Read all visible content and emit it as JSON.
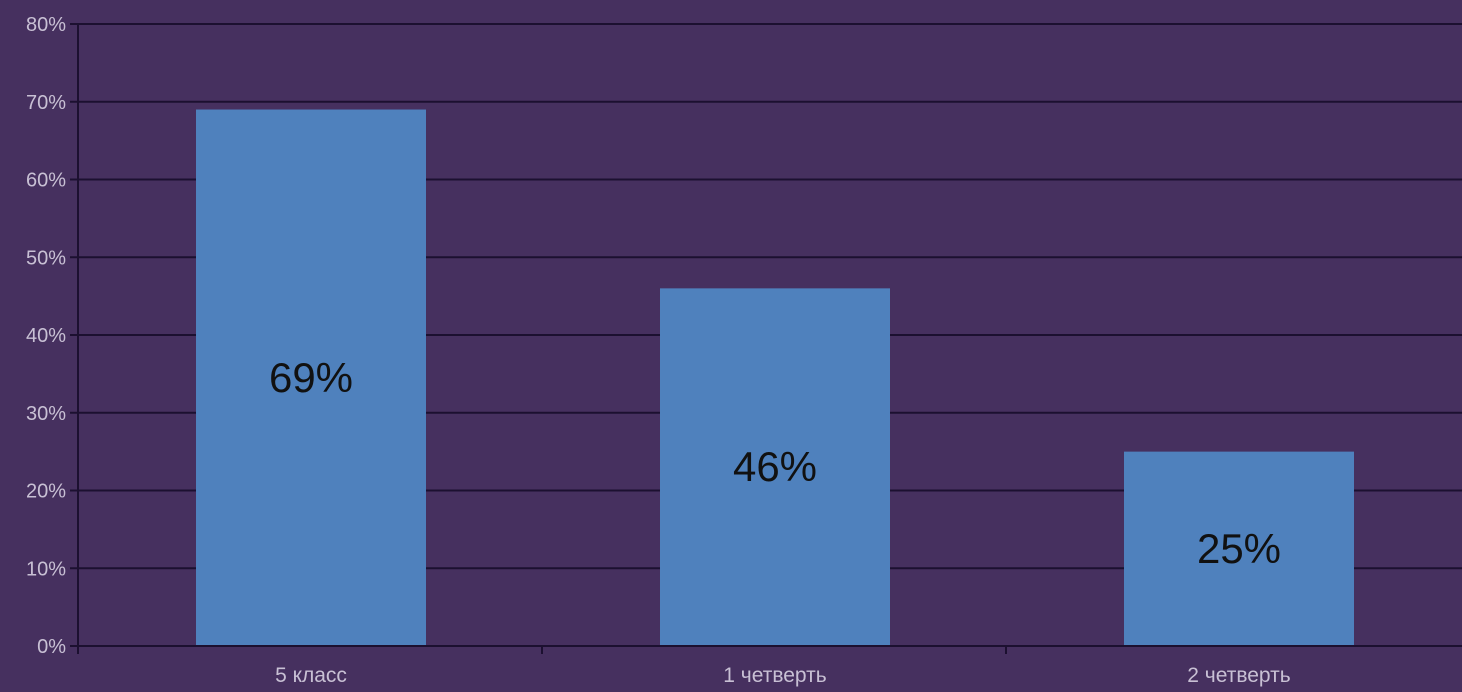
{
  "chart_data": {
    "type": "bar",
    "title": "",
    "xlabel": "",
    "ylabel": "",
    "categories": [
      "5 класс",
      "1 четверть",
      "2 четверть"
    ],
    "values": [
      69,
      46,
      25
    ],
    "value_labels": [
      "69%",
      "46%",
      "25%"
    ],
    "ylim": [
      0,
      80
    ],
    "y_ticks": [
      0,
      10,
      20,
      30,
      40,
      50,
      60,
      70,
      80
    ],
    "y_tick_labels": [
      "0%",
      "10%",
      "20%",
      "30%",
      "40%",
      "50%",
      "60%",
      "70%",
      "80%"
    ],
    "grid": true,
    "legend": "none",
    "colors": {
      "background": "#46305f",
      "bar": "#4f81bd",
      "gridline": "#1c1030",
      "tick_label": "#c8c0d4",
      "value_label": "#111111"
    }
  }
}
